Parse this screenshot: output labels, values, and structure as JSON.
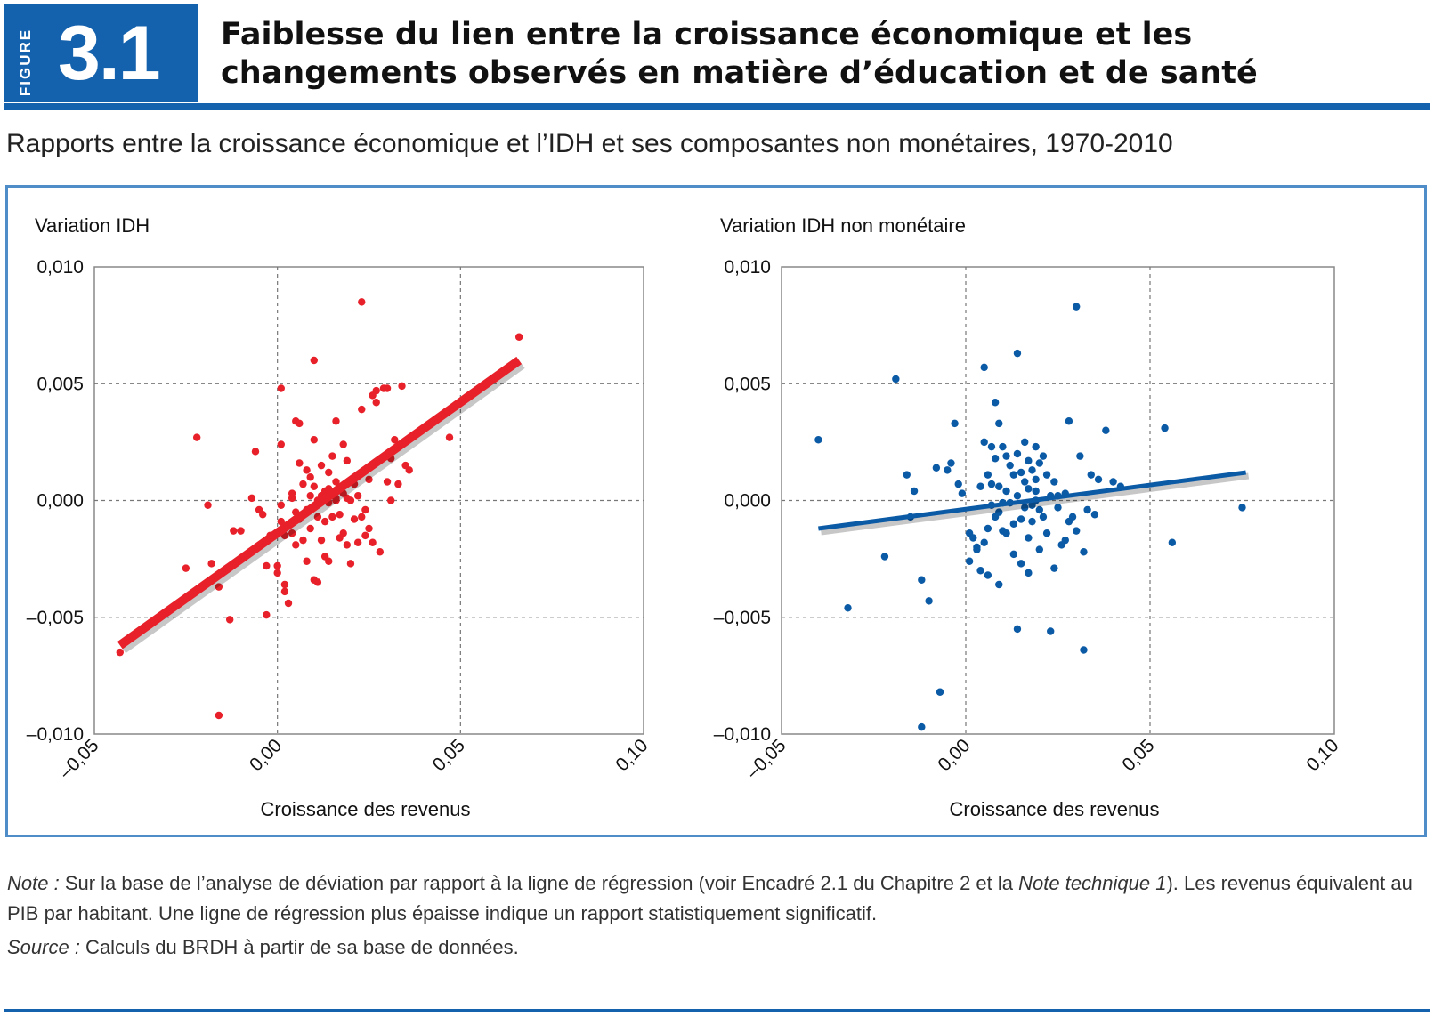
{
  "figure": {
    "label": "FIGURE",
    "number": "3.1"
  },
  "title": "Faiblesse du lien entre la croissance économique et les changements observés en matière d’éducation et de santé",
  "subtitle": "Rapports entre la croissance économique et l’IDH et ses composantes non monétaires, 1970-2010",
  "note": {
    "label": "Note :",
    "text_before": " Sur la base de l’analyse de déviation par rapport à la ligne de régression (voir Encadré 2.1 du Chapitre 2 et la ",
    "italic": "Note technique 1",
    "text_after": "). Les revenus équivalent au PIB par habitant. Une ligne de régression plus épaisse indique un rapport statistiquement significatif."
  },
  "source": {
    "label": "Source :",
    "text": " Calculs du BRDH à partir de sa base de données."
  },
  "colors": {
    "brand_blue": "#1462ae",
    "frame_blue": "#4f8dc9",
    "red": "#e8202a",
    "blue": "#0b5aa6"
  },
  "chart_data": [
    {
      "type": "scatter",
      "title": "",
      "ylabel": "Variation IDH",
      "xlabel": "Croissance des revenus",
      "xlim": [
        -0.05,
        0.1
      ],
      "ylim": [
        -0.01,
        0.01
      ],
      "xticks": [
        "–0,05",
        "0,00",
        "0,05",
        "0,10"
      ],
      "yticks": [
        "0,010",
        "0,005",
        "0,000",
        "–0,005",
        "–0,010"
      ],
      "grid": "dashed",
      "color": "#e8202a",
      "regression": {
        "x": [
          -0.043,
          0.066
        ],
        "y": [
          -0.0062,
          0.006
        ],
        "significant": true
      },
      "points": [
        [
          -0.043,
          -0.0065
        ],
        [
          -0.022,
          0.0027
        ],
        [
          -0.019,
          -0.0002
        ],
        [
          -0.018,
          -0.0027
        ],
        [
          -0.025,
          -0.0029
        ],
        [
          -0.016,
          -0.0037
        ],
        [
          -0.016,
          -0.0092
        ],
        [
          -0.013,
          -0.0051
        ],
        [
          -0.012,
          -0.0013
        ],
        [
          -0.01,
          -0.0013
        ],
        [
          -0.008,
          -0.0023
        ],
        [
          -0.007,
          0.0001
        ],
        [
          -0.006,
          0.0021
        ],
        [
          -0.005,
          -0.0004
        ],
        [
          -0.004,
          -0.0006
        ],
        [
          -0.003,
          -0.0049
        ],
        [
          -0.003,
          -0.0028
        ],
        [
          -0.002,
          -0.0015
        ],
        [
          0.0,
          -0.0031
        ],
        [
          0.0,
          -0.0028
        ],
        [
          0.001,
          0.0048
        ],
        [
          0.001,
          0.0024
        ],
        [
          0.001,
          -0.0002
        ],
        [
          0.001,
          -0.0009
        ],
        [
          0.002,
          -0.0015
        ],
        [
          0.002,
          -0.0036
        ],
        [
          0.002,
          -0.0039
        ],
        [
          0.003,
          -0.0044
        ],
        [
          0.003,
          -0.0011
        ],
        [
          0.004,
          -0.0014
        ],
        [
          0.004,
          0.0001
        ],
        [
          0.004,
          0.0003
        ],
        [
          0.005,
          0.0034
        ],
        [
          0.005,
          -0.0005
        ],
        [
          0.005,
          -0.0019
        ],
        [
          0.006,
          0.0033
        ],
        [
          0.006,
          0.0016
        ],
        [
          0.006,
          -0.0008
        ],
        [
          0.007,
          0.0007
        ],
        [
          0.007,
          -0.0017
        ],
        [
          0.008,
          0.0013
        ],
        [
          0.008,
          -0.0004
        ],
        [
          0.008,
          -0.0026
        ],
        [
          0.009,
          0.001
        ],
        [
          0.009,
          -0.0012
        ],
        [
          0.009,
          0.0002
        ],
        [
          0.01,
          0.006
        ],
        [
          0.01,
          0.0026
        ],
        [
          0.01,
          0.0006
        ],
        [
          0.01,
          -0.0034
        ],
        [
          0.011,
          -0.0035
        ],
        [
          0.011,
          0.0
        ],
        [
          0.011,
          -0.0007
        ],
        [
          0.012,
          0.0015
        ],
        [
          0.012,
          0.0002
        ],
        [
          0.012,
          -0.0017
        ],
        [
          0.013,
          0.0004
        ],
        [
          0.013,
          -0.0009
        ],
        [
          0.013,
          -0.0024
        ],
        [
          0.014,
          0.0005
        ],
        [
          0.014,
          -0.0001
        ],
        [
          0.014,
          -0.0026
        ],
        [
          0.015,
          0.0019
        ],
        [
          0.015,
          0.0003
        ],
        [
          0.015,
          -0.0007
        ],
        [
          0.016,
          0.0008
        ],
        [
          0.016,
          0.0001
        ],
        [
          0.016,
          0.0034
        ],
        [
          0.017,
          0.0005
        ],
        [
          0.017,
          -0.0016
        ],
        [
          0.017,
          -0.0006
        ],
        [
          0.018,
          0.0024
        ],
        [
          0.018,
          0.0003
        ],
        [
          0.018,
          -0.0014
        ],
        [
          0.019,
          0.0017
        ],
        [
          0.019,
          0.0001
        ],
        [
          0.019,
          -0.0019
        ],
        [
          0.02,
          0.0
        ],
        [
          0.02,
          -0.0027
        ],
        [
          0.021,
          0.0007
        ],
        [
          0.021,
          -0.0008
        ],
        [
          0.022,
          0.0002
        ],
        [
          0.022,
          -0.0018
        ],
        [
          0.023,
          0.0039
        ],
        [
          0.023,
          0.0085
        ],
        [
          0.023,
          -0.0007
        ],
        [
          0.024,
          -0.0004
        ],
        [
          0.024,
          -0.0015
        ],
        [
          0.025,
          0.0009
        ],
        [
          0.025,
          -0.0012
        ],
        [
          0.026,
          -0.0018
        ],
        [
          0.026,
          0.0045
        ],
        [
          0.027,
          0.0047
        ],
        [
          0.027,
          0.0042
        ],
        [
          0.028,
          -0.0022
        ],
        [
          0.029,
          0.0048
        ],
        [
          0.03,
          0.0048
        ],
        [
          0.03,
          0.0008
        ],
        [
          0.031,
          0.0
        ],
        [
          0.031,
          0.0018
        ],
        [
          0.032,
          0.0026
        ],
        [
          0.033,
          0.0007
        ],
        [
          0.034,
          0.0049
        ],
        [
          0.035,
          0.0015
        ],
        [
          0.036,
          0.0013
        ],
        [
          0.046,
          0.0038
        ],
        [
          0.047,
          0.0027
        ],
        [
          0.066,
          0.007
        ],
        [
          0.016,
          0.0
        ],
        [
          0.014,
          0.0012
        ]
      ]
    },
    {
      "type": "scatter",
      "title": "",
      "ylabel": "Variation IDH non monétaire",
      "xlabel": "Croissance des revenus",
      "xlim": [
        -0.05,
        0.1
      ],
      "ylim": [
        -0.01,
        0.01
      ],
      "xticks": [
        "–0,05",
        "0,00",
        "0,05",
        "0,10"
      ],
      "yticks": [
        "0,010",
        "0,005",
        "0,000",
        "–0,005",
        "–0,010"
      ],
      "grid": "dashed",
      "color": "#0b5aa6",
      "regression": {
        "x": [
          -0.04,
          0.076
        ],
        "y": [
          -0.0012,
          0.0012
        ],
        "significant": false
      },
      "points": [
        [
          -0.04,
          0.0026
        ],
        [
          -0.032,
          -0.0046
        ],
        [
          -0.019,
          0.0052
        ],
        [
          -0.022,
          -0.0024
        ],
        [
          -0.016,
          0.0011
        ],
        [
          -0.014,
          0.0004
        ],
        [
          -0.015,
          -0.0007
        ],
        [
          -0.012,
          -0.0034
        ],
        [
          -0.012,
          -0.0097
        ],
        [
          -0.01,
          -0.0043
        ],
        [
          -0.008,
          0.0014
        ],
        [
          -0.007,
          -0.0082
        ],
        [
          -0.005,
          0.0013
        ],
        [
          -0.004,
          0.0016
        ],
        [
          -0.003,
          0.0033
        ],
        [
          -0.002,
          0.0007
        ],
        [
          -0.001,
          0.0003
        ],
        [
          0.001,
          -0.0014
        ],
        [
          0.001,
          -0.0026
        ],
        [
          0.002,
          -0.0016
        ],
        [
          0.003,
          -0.002
        ],
        [
          0.003,
          -0.0021
        ],
        [
          0.004,
          0.0006
        ],
        [
          0.004,
          -0.003
        ],
        [
          0.005,
          0.0025
        ],
        [
          0.005,
          0.0057
        ],
        [
          0.005,
          -0.0018
        ],
        [
          0.006,
          0.0011
        ],
        [
          0.006,
          -0.0012
        ],
        [
          0.006,
          -0.0032
        ],
        [
          0.007,
          0.0023
        ],
        [
          0.007,
          -0.0002
        ],
        [
          0.007,
          0.0007
        ],
        [
          0.008,
          0.0042
        ],
        [
          0.008,
          0.0018
        ],
        [
          0.008,
          -0.0007
        ],
        [
          0.009,
          0.0033
        ],
        [
          0.009,
          0.0006
        ],
        [
          0.009,
          -0.0005
        ],
        [
          0.009,
          -0.0036
        ],
        [
          0.01,
          0.0023
        ],
        [
          0.01,
          -0.0001
        ],
        [
          0.01,
          -0.0013
        ],
        [
          0.011,
          0.0019
        ],
        [
          0.011,
          0.0004
        ],
        [
          0.011,
          -0.0014
        ],
        [
          0.012,
          0.0015
        ],
        [
          0.012,
          -0.0001
        ],
        [
          0.013,
          0.0011
        ],
        [
          0.013,
          -0.0023
        ],
        [
          0.013,
          -0.001
        ],
        [
          0.014,
          0.0063
        ],
        [
          0.014,
          0.002
        ],
        [
          0.014,
          0.0002
        ],
        [
          0.014,
          -0.0055
        ],
        [
          0.015,
          0.0012
        ],
        [
          0.015,
          -0.0008
        ],
        [
          0.015,
          -0.0027
        ],
        [
          0.016,
          0.0025
        ],
        [
          0.016,
          0.0008
        ],
        [
          0.016,
          -0.0003
        ],
        [
          0.017,
          0.0017
        ],
        [
          0.017,
          0.0005
        ],
        [
          0.017,
          -0.0016
        ],
        [
          0.017,
          -0.0031
        ],
        [
          0.018,
          0.0013
        ],
        [
          0.018,
          -0.0002
        ],
        [
          0.018,
          -0.0009
        ],
        [
          0.019,
          0.0023
        ],
        [
          0.019,
          0.0009
        ],
        [
          0.019,
          0.0
        ],
        [
          0.02,
          0.0016
        ],
        [
          0.02,
          -0.0004
        ],
        [
          0.02,
          -0.0021
        ],
        [
          0.021,
          0.0019
        ],
        [
          0.021,
          -0.0007
        ],
        [
          0.022,
          0.0011
        ],
        [
          0.022,
          -0.0014
        ],
        [
          0.023,
          0.0002
        ],
        [
          0.023,
          -0.0056
        ],
        [
          0.024,
          -0.0029
        ],
        [
          0.024,
          0.0008
        ],
        [
          0.025,
          -0.0003
        ],
        [
          0.025,
          0.0002
        ],
        [
          0.026,
          -0.0019
        ],
        [
          0.027,
          0.0003
        ],
        [
          0.027,
          -0.0017
        ],
        [
          0.028,
          0.0034
        ],
        [
          0.028,
          -0.0009
        ],
        [
          0.029,
          -0.0007
        ],
        [
          0.03,
          0.0083
        ],
        [
          0.03,
          -0.0013
        ],
        [
          0.031,
          0.0019
        ],
        [
          0.032,
          -0.0022
        ],
        [
          0.032,
          -0.0064
        ],
        [
          0.033,
          -0.0004
        ],
        [
          0.034,
          0.0011
        ],
        [
          0.035,
          -0.0006
        ],
        [
          0.036,
          0.0009
        ],
        [
          0.038,
          0.003
        ],
        [
          0.04,
          0.0008
        ],
        [
          0.042,
          0.0006
        ],
        [
          0.054,
          0.0031
        ],
        [
          0.056,
          -0.0018
        ],
        [
          0.075,
          -0.0003
        ],
        [
          0.019,
          0.0004
        ]
      ]
    }
  ]
}
